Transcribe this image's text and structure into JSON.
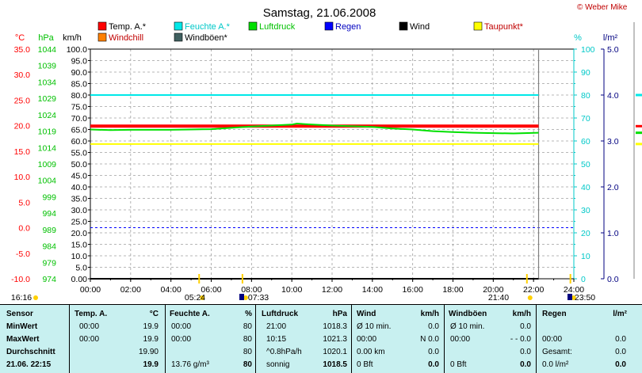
{
  "chart_data": {
    "type": "line",
    "title": "Samstag, 21.06.2008",
    "copyright": "© Weber Mike",
    "x_tick_labels": [
      "00:00",
      "02:00",
      "04:00",
      "06:00",
      "08:00",
      "10:00",
      "12:00",
      "14:00",
      "16:00",
      "18:00",
      "20:00",
      "22:00",
      "24:00"
    ],
    "axes": {
      "temp": {
        "unit": "°C",
        "color": "#ff0000",
        "ticks": [
          "35.0",
          "30.0",
          "25.0",
          "20.0",
          "15.0",
          "10.0",
          "5.0",
          "0.0",
          "-5.0",
          "-10.0"
        ],
        "range": [
          -10,
          35
        ]
      },
      "pressure": {
        "unit": "hPa",
        "color": "#00c000",
        "ticks": [
          "1044",
          "1039",
          "1034",
          "1029",
          "1024",
          "1019",
          "1014",
          "1009",
          "1004",
          "999",
          "994",
          "989",
          "984",
          "979",
          "974"
        ],
        "range": [
          974,
          1044
        ]
      },
      "wind": {
        "unit": "km/h",
        "color": "#000000",
        "ticks": [
          "100.0",
          "95.0",
          "90.0",
          "85.0",
          "80.0",
          "75.0",
          "70.0",
          "65.0",
          "60.0",
          "55.0",
          "50.0",
          "45.0",
          "40.0",
          "35.0",
          "30.0",
          "25.0",
          "20.0",
          "15.0",
          "10.0",
          "5.0",
          "0.00"
        ],
        "range": [
          0,
          100
        ]
      },
      "humidity": {
        "unit": "%",
        "color": "#00c8c8",
        "ticks": [
          "100",
          "90",
          "80",
          "70",
          "60",
          "50",
          "40",
          "30",
          "20",
          "10",
          "0"
        ],
        "range": [
          0,
          100
        ]
      },
      "rain": {
        "unit": "l/m²",
        "color": "#000080",
        "ticks": [
          "5.0",
          "4.0",
          "3.0",
          "2.0",
          "1.0",
          "0.0"
        ],
        "range": [
          0,
          5
        ]
      }
    },
    "legend": [
      {
        "label": "Temp. A.*",
        "color": "#ff0000"
      },
      {
        "label": "Feuchte A.*",
        "color": "#00e8e8"
      },
      {
        "label": "Luftdruck",
        "color": "#00e000"
      },
      {
        "label": "Regen",
        "color": "#0000ff"
      },
      {
        "label": "Wind",
        "color": "#000000"
      },
      {
        "label": "Taupunkt*",
        "color": "#ffff00"
      },
      {
        "label": "Windchill",
        "color": "#ff8000"
      },
      {
        "label": "Windböen*",
        "color": "#406060"
      }
    ],
    "series": [
      {
        "name": "Temp. A.*",
        "axis": "temp",
        "color": "#ff0000",
        "x": [
          0,
          22.25
        ],
        "values": [
          19.9,
          19.9
        ]
      },
      {
        "name": "Feuchte A.*",
        "axis": "humidity",
        "color": "#00e8e8",
        "x": [
          0,
          22.25
        ],
        "values": [
          80,
          80
        ]
      },
      {
        "name": "Taupunkt*",
        "axis": "temp",
        "color": "#ffff00",
        "x": [
          0,
          22.25
        ],
        "values": [
          16.4,
          16.4
        ]
      },
      {
        "name": "Luftdruck",
        "axis": "pressure",
        "color": "#00e000",
        "x": [
          0,
          1,
          2,
          3,
          4,
          5,
          6,
          7,
          8,
          9,
          10,
          10.25,
          11,
          12,
          13,
          14,
          15,
          16,
          17,
          18,
          19,
          20,
          21,
          22.25
        ],
        "values": [
          1019.5,
          1019.3,
          1019.4,
          1019.4,
          1019.4,
          1019.5,
          1019.6,
          1020.0,
          1020.4,
          1020.7,
          1021.0,
          1021.3,
          1021.0,
          1020.7,
          1020.5,
          1020.3,
          1019.8,
          1019.5,
          1019.0,
          1018.7,
          1018.5,
          1018.4,
          1018.3,
          1018.5
        ]
      },
      {
        "name": "Wind",
        "axis": "wind",
        "color": "#000000",
        "x": [
          0,
          22.25
        ],
        "values": [
          0,
          0
        ]
      }
    ],
    "reference_lines": [
      {
        "label": "0.0 °C",
        "axis": "temp",
        "value": 0,
        "color": "#0000ff",
        "style": "dashed"
      },
      {
        "label": "22:15",
        "axis": "x",
        "value": 22.25,
        "color": "#808080",
        "style": "solid"
      }
    ],
    "sun_markers": [
      {
        "label": "16:16",
        "x": -0.5
      },
      {
        "label": "05:24",
        "x": 5.4
      },
      {
        "label": "07:33",
        "x": 7.55
      },
      {
        "label": "21:40",
        "x": 21.67
      },
      {
        "label": "23:50",
        "x": 23.83
      }
    ],
    "right_cut_markers": [
      {
        "color": "#00e8e8",
        "axis": "humidity",
        "value": 80
      },
      {
        "color": "#ff0000",
        "axis": "temp",
        "value": 19.9
      },
      {
        "color": "#00e000",
        "axis": "pressure",
        "value": 1018.5
      },
      {
        "color": "#ffff00",
        "axis": "temp",
        "value": 16.4
      }
    ],
    "grid": true
  },
  "table": {
    "headers": {
      "sensor": "Sensor",
      "temp": {
        "name": "Temp. A.",
        "unit": "°C"
      },
      "hum": {
        "name": "Feuchte A.",
        "unit": "%"
      },
      "press": {
        "name": "Luftdruck",
        "unit": "hPa"
      },
      "wind": {
        "name": "Wind",
        "unit": "km/h"
      },
      "gust": {
        "name": "Windböen",
        "unit": "km/h"
      },
      "rain": {
        "name": "Regen",
        "unit": "l/m²"
      }
    },
    "rows": {
      "min": {
        "label": "MinWert",
        "temp_time": "00:00",
        "temp_val": "19.9",
        "hum_time": "00:00",
        "hum_val": "80",
        "press_time": "21:00",
        "press_val": "1018.3",
        "wind_time": "Ø 10 min.",
        "wind_val": "0.0",
        "gust_time": "Ø 10 min.",
        "gust_val": "0.0",
        "rain_time": "",
        "rain_val": ""
      },
      "max": {
        "label": "MaxWert",
        "temp_time": "00:00",
        "temp_val": "19.9",
        "hum_time": "00:00",
        "hum_val": "80",
        "press_time": "10:15",
        "press_val": "1021.3",
        "wind_time": "00:00",
        "wind_val": "N 0.0",
        "gust_time": "00:00",
        "gust_val": "- - 0.0",
        "rain_time": "00:00",
        "rain_val": "0.0"
      },
      "avg": {
        "label": "Durchschnitt",
        "temp_val": "19.90",
        "hum_val": "80",
        "press_time": "^0.8hPa/h",
        "press_val": "1020.1",
        "wind_time": "0.00 km",
        "wind_val": "0.0",
        "gust_time": "",
        "gust_val": "0.0",
        "rain_time": "Gesamt:",
        "rain_val": "0.0"
      },
      "cur": {
        "label": "21.06.  22:15",
        "temp_val": "19.9",
        "hum_time": "13.76 g/m³",
        "hum_val": "80",
        "press_time": "sonnig",
        "press_val": "1018.5",
        "wind_time": "0 Bft",
        "wind_val": "0.0",
        "gust_time": "0 Bft",
        "gust_val": "0.0",
        "rain_time": "0.0 l/m²",
        "rain_val": "0.0"
      }
    }
  }
}
